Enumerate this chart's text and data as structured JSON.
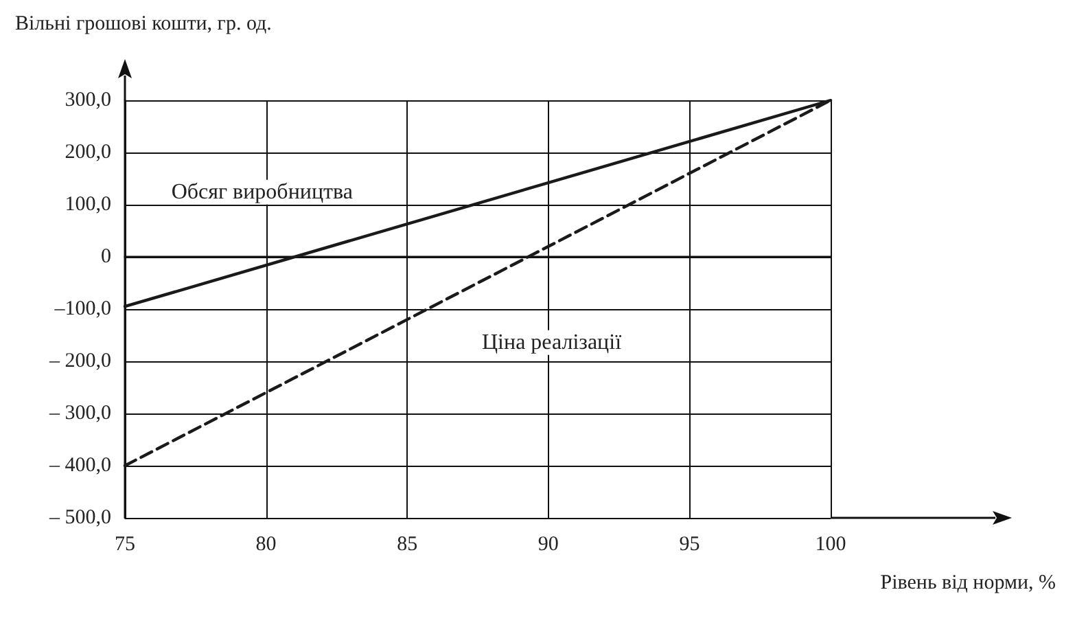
{
  "chart_data": {
    "type": "line",
    "xlabel": "Рівень від норми, %",
    "ylabel": "Вільні грошові кошти, гр. од.",
    "x": [
      75,
      100
    ],
    "series": [
      {
        "name": "Обсяг виробництва",
        "color": "#1a1a1a",
        "values": [
          -95,
          300
        ],
        "line_style": "solid"
      },
      {
        "name": "Ціна реалізації",
        "color": "#1a1a1a",
        "values": [
          -400,
          300
        ],
        "line_style": "dashed"
      }
    ],
    "xlim": [
      75,
      100
    ],
    "xticks": [
      75,
      80,
      85,
      90,
      95,
      100
    ],
    "ylim": [
      -500,
      300
    ],
    "yticks": [
      {
        "value": -500,
        "label": "– 500,0"
      },
      {
        "value": -400,
        "label": "– 400,0"
      },
      {
        "value": -300,
        "label": "– 300,0"
      },
      {
        "value": -200,
        "label": "– 200,0"
      },
      {
        "value": -100,
        "label": "–100,0"
      },
      {
        "value": 0,
        "label": "0"
      },
      {
        "value": 100,
        "label": "100,0"
      },
      {
        "value": 200,
        "label": "200,0"
      },
      {
        "value": 300,
        "label": "300,0"
      }
    ],
    "grid": true,
    "legend": false,
    "marker": "none"
  }
}
